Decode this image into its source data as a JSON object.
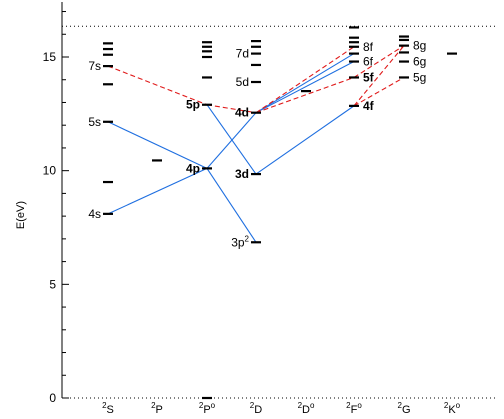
{
  "axis": {
    "ylabel": "E(eV)",
    "ylim": [
      0,
      17.5
    ],
    "yticks": [
      0,
      5,
      10,
      15
    ],
    "ionization_limit": 16.35
  },
  "columns": [
    {
      "id": "S",
      "sup": "2",
      "base": "S",
      "odd": false
    },
    {
      "id": "P",
      "sup": "2",
      "base": "P",
      "odd": false
    },
    {
      "id": "Po",
      "sup": "2",
      "base": "P",
      "odd": true
    },
    {
      "id": "D",
      "sup": "2",
      "base": "D",
      "odd": false
    },
    {
      "id": "Do",
      "sup": "2",
      "base": "D",
      "odd": true
    },
    {
      "id": "Fo",
      "sup": "2",
      "base": "F",
      "odd": true
    },
    {
      "id": "G",
      "sup": "2",
      "base": "G",
      "odd": false
    },
    {
      "id": "Ko",
      "sup": "2",
      "base": "K",
      "odd": true
    }
  ],
  "levels": [
    {
      "col": "S",
      "e": 8.1,
      "label": "4s",
      "bold": false,
      "side": "left"
    },
    {
      "col": "S",
      "e": 9.5
    },
    {
      "col": "S",
      "e": 12.15,
      "label": "5s",
      "bold": false,
      "side": "left"
    },
    {
      "col": "S",
      "e": 13.8
    },
    {
      "col": "S",
      "e": 14.6,
      "label": "7s",
      "bold": false,
      "side": "left"
    },
    {
      "col": "S",
      "e": 15.1
    },
    {
      "col": "S",
      "e": 15.35
    },
    {
      "col": "S",
      "e": 15.6
    },
    {
      "col": "P",
      "e": 10.45
    },
    {
      "col": "Po",
      "e": 0.0
    },
    {
      "col": "Po",
      "e": 10.1,
      "label": "4p",
      "bold": true,
      "side": "left"
    },
    {
      "col": "Po",
      "e": 12.9,
      "label": "5p",
      "bold": true,
      "side": "left"
    },
    {
      "col": "Po",
      "e": 14.1
    },
    {
      "col": "Po",
      "e": 15.0
    },
    {
      "col": "Po",
      "e": 15.25
    },
    {
      "col": "Po",
      "e": 15.45
    },
    {
      "col": "Po",
      "e": 15.65
    },
    {
      "col": "D",
      "e": 6.85,
      "label": "3p",
      "sup": "2",
      "bold": false,
      "side": "left"
    },
    {
      "col": "D",
      "e": 9.85,
      "label": "3d",
      "bold": true,
      "side": "left"
    },
    {
      "col": "D",
      "e": 12.55,
      "label": "4d",
      "bold": true,
      "side": "left"
    },
    {
      "col": "D",
      "e": 13.9,
      "label": "5d",
      "bold": false,
      "side": "left"
    },
    {
      "col": "D",
      "e": 14.65
    },
    {
      "col": "D",
      "e": 15.15,
      "label": "7d",
      "bold": false,
      "side": "left"
    },
    {
      "col": "D",
      "e": 15.45
    },
    {
      "col": "D",
      "e": 15.7
    },
    {
      "col": "Do",
      "e": 13.5
    },
    {
      "col": "Fo",
      "e": 12.85,
      "label": "4f",
      "bold": true,
      "side": "right"
    },
    {
      "col": "Fo",
      "e": 14.1,
      "label": "5f",
      "bold": true,
      "side": "right"
    },
    {
      "col": "Fo",
      "e": 14.8,
      "label": "6f",
      "bold": false,
      "side": "right"
    },
    {
      "col": "Fo",
      "e": 15.15
    },
    {
      "col": "Fo",
      "e": 15.45,
      "label": "8f",
      "bold": false,
      "side": "right"
    },
    {
      "col": "Fo",
      "e": 15.65
    },
    {
      "col": "Fo",
      "e": 15.85
    },
    {
      "col": "Fo",
      "e": 16.3
    },
    {
      "col": "G",
      "e": 14.1,
      "label": "5g",
      "bold": false,
      "side": "right"
    },
    {
      "col": "G",
      "e": 14.8,
      "label": "6g",
      "bold": false,
      "side": "right"
    },
    {
      "col": "G",
      "e": 15.2
    },
    {
      "col": "G",
      "e": 15.5,
      "label": "8g",
      "bold": false,
      "side": "right"
    },
    {
      "col": "G",
      "e": 15.75
    },
    {
      "col": "G",
      "e": 15.9
    },
    {
      "col": "Ko",
      "e": 15.15
    }
  ],
  "transitions_solid": [
    {
      "from": [
        "S",
        8.1
      ],
      "to": [
        "Po",
        10.1
      ]
    },
    {
      "from": [
        "S",
        12.15
      ],
      "to": [
        "Po",
        10.1
      ]
    },
    {
      "from": [
        "Po",
        10.1
      ],
      "to": [
        "D",
        6.85
      ]
    },
    {
      "from": [
        "Po",
        10.1
      ],
      "to": [
        "D",
        12.55
      ]
    },
    {
      "from": [
        "Po",
        12.9
      ],
      "to": [
        "D",
        9.85
      ]
    },
    {
      "from": [
        "D",
        9.85
      ],
      "to": [
        "Fo",
        12.85
      ]
    },
    {
      "from": [
        "D",
        12.55
      ],
      "to": [
        "Fo",
        14.8
      ]
    },
    {
      "from": [
        "D",
        12.55
      ],
      "to": [
        "Fo",
        15.15
      ]
    }
  ],
  "transitions_dashed": [
    {
      "from": [
        "S",
        14.6
      ],
      "to": [
        "Po",
        12.9
      ]
    },
    {
      "from": [
        "Po",
        12.9
      ],
      "to": [
        "D",
        12.55
      ]
    },
    {
      "from": [
        "D",
        12.55
      ],
      "to": [
        "Fo",
        15.45
      ]
    },
    {
      "from": [
        "D",
        12.55
      ],
      "to": [
        "Fo",
        14.1
      ]
    },
    {
      "from": [
        "Fo",
        12.85
      ],
      "to": [
        "G",
        15.5
      ]
    },
    {
      "from": [
        "Fo",
        14.1
      ],
      "to": [
        "G",
        15.5
      ]
    },
    {
      "from": [
        "Fo",
        12.85
      ],
      "to": [
        "G",
        14.1
      ]
    }
  ],
  "colors": {
    "solid": "#1f6fe0",
    "dashed": "#e01a1a",
    "axis": "#000000"
  }
}
